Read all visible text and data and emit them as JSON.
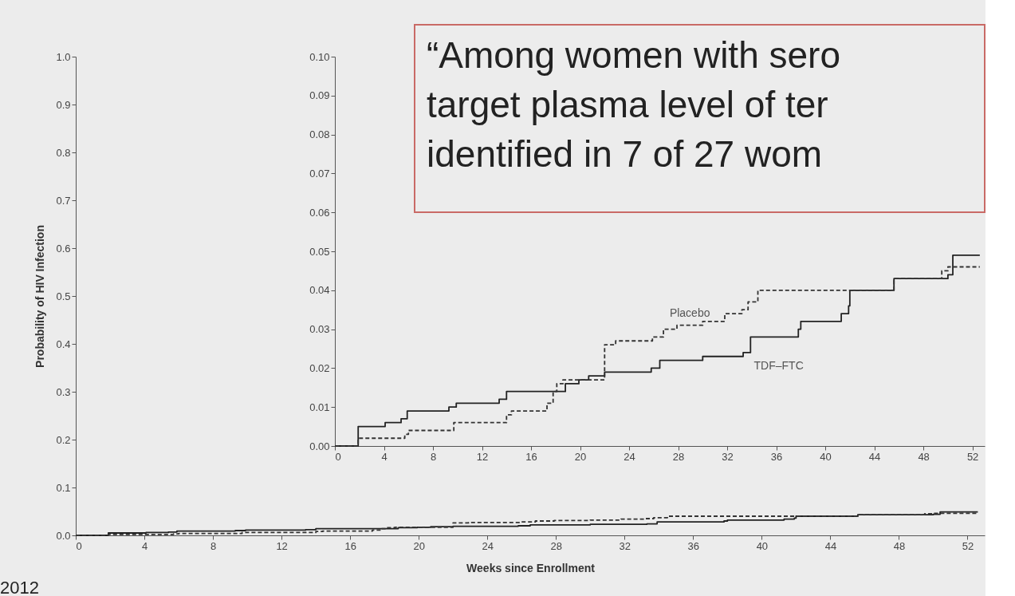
{
  "chart_data": [
    {
      "type": "step",
      "xlabel": "Weeks since Enrollment",
      "ylabel": "Probability of HIV Infection",
      "annotations": [
        "“Among women with sero\ntarget plasma level of ter\nidentified in 7 of 27 wom",
        "2012"
      ],
      "xlim": [
        0,
        53
      ],
      "xticks": [
        0,
        4,
        8,
        12,
        16,
        20,
        24,
        28,
        32,
        36,
        40,
        44,
        48,
        52
      ],
      "ylim": [
        0,
        1
      ],
      "yticks": [
        {
          "value": 0,
          "label": "0.0"
        },
        {
          "value": 0.1,
          "label": "0.1"
        },
        {
          "value": 0.2,
          "label": "0.2"
        },
        {
          "value": 0.3,
          "label": "0.3"
        },
        {
          "value": 0.4,
          "label": "0.4"
        },
        {
          "value": 0.5,
          "label": "0.5"
        },
        {
          "value": 0.6,
          "label": "0.6"
        },
        {
          "value": 0.7,
          "label": "0.7"
        },
        {
          "value": 0.8,
          "label": "0.8"
        },
        {
          "value": 0.9,
          "label": "0.9"
        },
        {
          "value": 1,
          "label": "1.0"
        }
      ],
      "grid": false,
      "legend": false,
      "series": [
        {
          "color": "#222222",
          "line_style": "solid",
          "x": [
            0,
            1.9,
            4.1,
            5.4,
            5.9,
            9.3,
            9.9,
            13.4,
            14,
            18.8,
            19.9,
            20.7,
            22,
            25.8,
            26.5,
            30,
            33.3,
            33.9,
            37.8,
            38,
            41.3,
            41.9,
            42,
            45.6,
            50,
            50.4,
            52.6
          ],
          "values": [
            0,
            0.005,
            0.006,
            0.007,
            0.009,
            0.01,
            0.011,
            0.012,
            0.014,
            0.016,
            0.017,
            0.018,
            0.019,
            0.02,
            0.022,
            0.023,
            0.024,
            0.028,
            0.03,
            0.032,
            0.034,
            0.036,
            0.04,
            0.043,
            0.044,
            0.049,
            0.049
          ]
        },
        {
          "color": "#333333",
          "line_style": "dashed",
          "x": [
            0,
            1.9,
            5.7,
            6,
            9.7,
            14,
            14.4,
            17.3,
            17.8,
            18.1,
            18.6,
            22,
            22.9,
            25.9,
            26.8,
            27.9,
            30,
            31.8,
            33.2,
            33.7,
            34.5,
            45.6,
            49.5,
            50,
            52.6
          ],
          "values": [
            0,
            0.002,
            0.003,
            0.004,
            0.006,
            0.008,
            0.009,
            0.011,
            0.014,
            0.016,
            0.017,
            0.026,
            0.027,
            0.028,
            0.03,
            0.031,
            0.032,
            0.034,
            0.035,
            0.037,
            0.04,
            0.043,
            0.045,
            0.046,
            0.046
          ]
        }
      ]
    },
    {
      "type": "step",
      "xlim": [
        0,
        53
      ],
      "xticks": [
        0,
        4,
        8,
        12,
        16,
        20,
        24,
        28,
        32,
        36,
        40,
        44,
        48,
        52
      ],
      "ylim": [
        0,
        0.1
      ],
      "yticks": [
        {
          "value": 0,
          "label": "0.00"
        },
        {
          "value": 0.01,
          "label": "0.01"
        },
        {
          "value": 0.02,
          "label": "0.02"
        },
        {
          "value": 0.03,
          "label": "0.03"
        },
        {
          "value": 0.04,
          "label": "0.04"
        },
        {
          "value": 0.05,
          "label": "0.05"
        },
        {
          "value": 0.06,
          "label": "0.06"
        },
        {
          "value": 0.07,
          "label": "0.07"
        },
        {
          "value": 0.08,
          "label": "0.08"
        },
        {
          "value": 0.09,
          "label": "0.09"
        },
        {
          "value": 0.1,
          "label": "0.10"
        }
      ],
      "grid": false,
      "legend": false,
      "series": [
        {
          "name": "TDF–FTC",
          "color": "#222222",
          "line_style": "solid",
          "x": [
            0,
            1.9,
            4.1,
            5.4,
            5.9,
            9.3,
            9.9,
            13.4,
            14,
            18.8,
            19.9,
            20.7,
            22,
            25.8,
            26.5,
            30,
            33.3,
            33.9,
            37.8,
            38,
            41.3,
            41.9,
            42,
            45.6,
            50,
            50.4,
            52.6
          ],
          "values": [
            0,
            0.005,
            0.006,
            0.007,
            0.009,
            0.01,
            0.011,
            0.012,
            0.014,
            0.016,
            0.017,
            0.018,
            0.019,
            0.02,
            0.022,
            0.023,
            0.024,
            0.028,
            0.03,
            0.032,
            0.034,
            0.036,
            0.04,
            0.043,
            0.044,
            0.049,
            0.049
          ]
        },
        {
          "name": "Placebo",
          "color": "#333333",
          "line_style": "dashed",
          "x": [
            0,
            1.9,
            5.7,
            6,
            9.7,
            14,
            14.4,
            17.3,
            17.8,
            18.1,
            18.6,
            22,
            22.9,
            25.9,
            26.8,
            27.9,
            30,
            31.8,
            33.2,
            33.7,
            34.5,
            45.6,
            49.5,
            50,
            52.6
          ],
          "values": [
            0,
            0.002,
            0.003,
            0.004,
            0.006,
            0.008,
            0.009,
            0.011,
            0.014,
            0.016,
            0.017,
            0.026,
            0.027,
            0.028,
            0.03,
            0.031,
            0.032,
            0.034,
            0.035,
            0.037,
            0.04,
            0.043,
            0.045,
            0.046,
            0.046
          ]
        }
      ]
    }
  ]
}
